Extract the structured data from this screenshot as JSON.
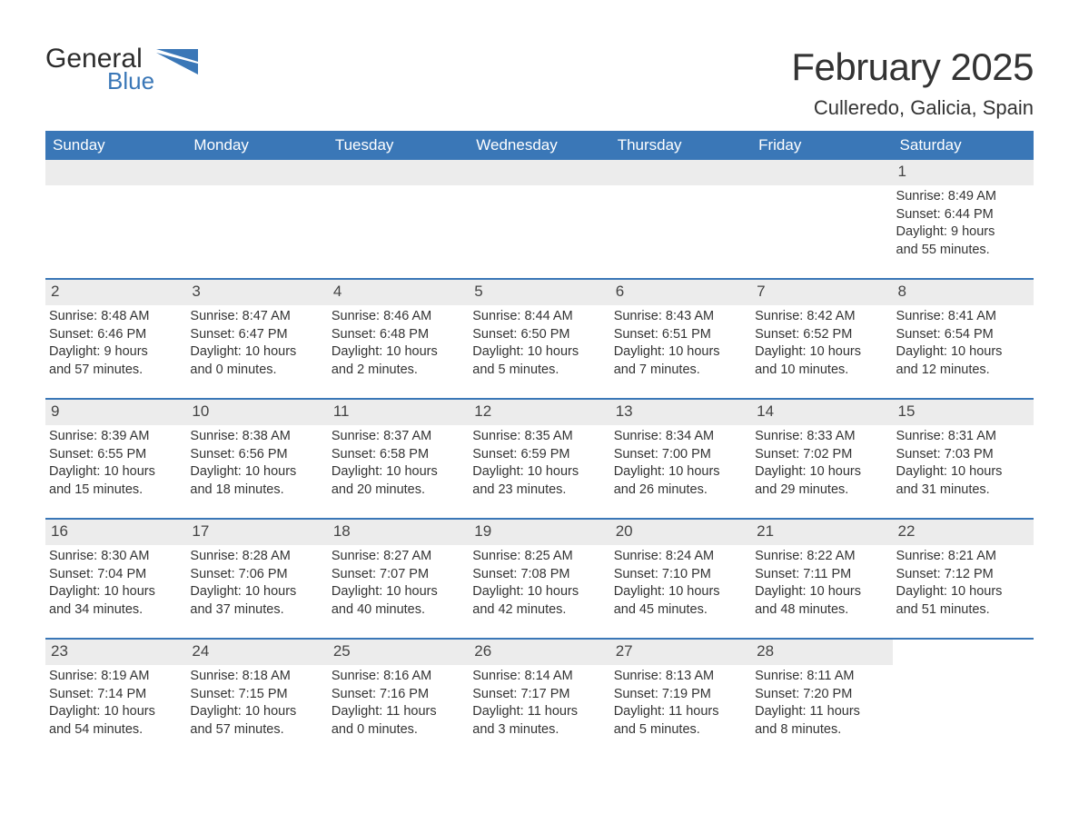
{
  "logo": {
    "general": "General",
    "blue": "Blue",
    "flag_color": "#3a77b7"
  },
  "title": {
    "month": "February 2025",
    "location": "Culleredo, Galicia, Spain"
  },
  "colors": {
    "header_bg": "#3a77b7",
    "header_text": "#ffffff",
    "daybar_bg": "#ececec",
    "border": "#3a77b7",
    "text": "#333333",
    "background": "#ffffff"
  },
  "typography": {
    "month_fontsize": 42,
    "location_fontsize": 22,
    "weekday_fontsize": 17,
    "daynum_fontsize": 17,
    "detail_fontsize": 14.5
  },
  "weekdays": [
    "Sunday",
    "Monday",
    "Tuesday",
    "Wednesday",
    "Thursday",
    "Friday",
    "Saturday"
  ],
  "labels": {
    "sunrise": "Sunrise:",
    "sunset": "Sunset:",
    "daylight": "Daylight:"
  },
  "weeks": [
    [
      {
        "empty": true
      },
      {
        "empty": true
      },
      {
        "empty": true
      },
      {
        "empty": true
      },
      {
        "empty": true
      },
      {
        "empty": true
      },
      {
        "day": "1",
        "sunrise": "8:49 AM",
        "sunset": "6:44 PM",
        "daylight_l1": "9 hours",
        "daylight_l2": "and 55 minutes."
      }
    ],
    [
      {
        "day": "2",
        "sunrise": "8:48 AM",
        "sunset": "6:46 PM",
        "daylight_l1": "9 hours",
        "daylight_l2": "and 57 minutes."
      },
      {
        "day": "3",
        "sunrise": "8:47 AM",
        "sunset": "6:47 PM",
        "daylight_l1": "10 hours",
        "daylight_l2": "and 0 minutes."
      },
      {
        "day": "4",
        "sunrise": "8:46 AM",
        "sunset": "6:48 PM",
        "daylight_l1": "10 hours",
        "daylight_l2": "and 2 minutes."
      },
      {
        "day": "5",
        "sunrise": "8:44 AM",
        "sunset": "6:50 PM",
        "daylight_l1": "10 hours",
        "daylight_l2": "and 5 minutes."
      },
      {
        "day": "6",
        "sunrise": "8:43 AM",
        "sunset": "6:51 PM",
        "daylight_l1": "10 hours",
        "daylight_l2": "and 7 minutes."
      },
      {
        "day": "7",
        "sunrise": "8:42 AM",
        "sunset": "6:52 PM",
        "daylight_l1": "10 hours",
        "daylight_l2": "and 10 minutes."
      },
      {
        "day": "8",
        "sunrise": "8:41 AM",
        "sunset": "6:54 PM",
        "daylight_l1": "10 hours",
        "daylight_l2": "and 12 minutes."
      }
    ],
    [
      {
        "day": "9",
        "sunrise": "8:39 AM",
        "sunset": "6:55 PM",
        "daylight_l1": "10 hours",
        "daylight_l2": "and 15 minutes."
      },
      {
        "day": "10",
        "sunrise": "8:38 AM",
        "sunset": "6:56 PM",
        "daylight_l1": "10 hours",
        "daylight_l2": "and 18 minutes."
      },
      {
        "day": "11",
        "sunrise": "8:37 AM",
        "sunset": "6:58 PM",
        "daylight_l1": "10 hours",
        "daylight_l2": "and 20 minutes."
      },
      {
        "day": "12",
        "sunrise": "8:35 AM",
        "sunset": "6:59 PM",
        "daylight_l1": "10 hours",
        "daylight_l2": "and 23 minutes."
      },
      {
        "day": "13",
        "sunrise": "8:34 AM",
        "sunset": "7:00 PM",
        "daylight_l1": "10 hours",
        "daylight_l2": "and 26 minutes."
      },
      {
        "day": "14",
        "sunrise": "8:33 AM",
        "sunset": "7:02 PM",
        "daylight_l1": "10 hours",
        "daylight_l2": "and 29 minutes."
      },
      {
        "day": "15",
        "sunrise": "8:31 AM",
        "sunset": "7:03 PM",
        "daylight_l1": "10 hours",
        "daylight_l2": "and 31 minutes."
      }
    ],
    [
      {
        "day": "16",
        "sunrise": "8:30 AM",
        "sunset": "7:04 PM",
        "daylight_l1": "10 hours",
        "daylight_l2": "and 34 minutes."
      },
      {
        "day": "17",
        "sunrise": "8:28 AM",
        "sunset": "7:06 PM",
        "daylight_l1": "10 hours",
        "daylight_l2": "and 37 minutes."
      },
      {
        "day": "18",
        "sunrise": "8:27 AM",
        "sunset": "7:07 PM",
        "daylight_l1": "10 hours",
        "daylight_l2": "and 40 minutes."
      },
      {
        "day": "19",
        "sunrise": "8:25 AM",
        "sunset": "7:08 PM",
        "daylight_l1": "10 hours",
        "daylight_l2": "and 42 minutes."
      },
      {
        "day": "20",
        "sunrise": "8:24 AM",
        "sunset": "7:10 PM",
        "daylight_l1": "10 hours",
        "daylight_l2": "and 45 minutes."
      },
      {
        "day": "21",
        "sunrise": "8:22 AM",
        "sunset": "7:11 PM",
        "daylight_l1": "10 hours",
        "daylight_l2": "and 48 minutes."
      },
      {
        "day": "22",
        "sunrise": "8:21 AM",
        "sunset": "7:12 PM",
        "daylight_l1": "10 hours",
        "daylight_l2": "and 51 minutes."
      }
    ],
    [
      {
        "day": "23",
        "sunrise": "8:19 AM",
        "sunset": "7:14 PM",
        "daylight_l1": "10 hours",
        "daylight_l2": "and 54 minutes."
      },
      {
        "day": "24",
        "sunrise": "8:18 AM",
        "sunset": "7:15 PM",
        "daylight_l1": "10 hours",
        "daylight_l2": "and 57 minutes."
      },
      {
        "day": "25",
        "sunrise": "8:16 AM",
        "sunset": "7:16 PM",
        "daylight_l1": "11 hours",
        "daylight_l2": "and 0 minutes."
      },
      {
        "day": "26",
        "sunrise": "8:14 AM",
        "sunset": "7:17 PM",
        "daylight_l1": "11 hours",
        "daylight_l2": "and 3 minutes."
      },
      {
        "day": "27",
        "sunrise": "8:13 AM",
        "sunset": "7:19 PM",
        "daylight_l1": "11 hours",
        "daylight_l2": "and 5 minutes."
      },
      {
        "day": "28",
        "sunrise": "8:11 AM",
        "sunset": "7:20 PM",
        "daylight_l1": "11 hours",
        "daylight_l2": "and 8 minutes."
      },
      {
        "empty": true,
        "noBar": true
      }
    ]
  ]
}
